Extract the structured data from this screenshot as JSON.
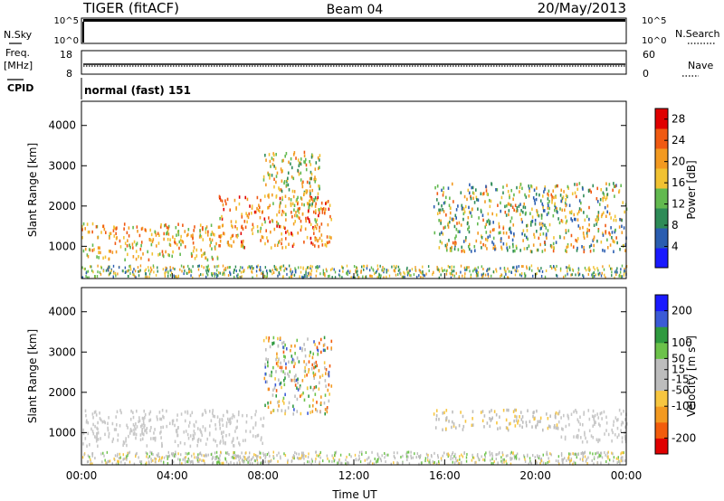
{
  "header": {
    "station": "TIGER (fitACF)",
    "beam": "Beam 04",
    "date": "20/May/2013"
  },
  "strips": {
    "nsky": {
      "label": "N.Sky",
      "right_label": "N.Search",
      "ticks": [
        "10^5",
        "10^0"
      ]
    },
    "freq": {
      "label": "Freq.",
      "unit": "[MHz]",
      "ticks_left": [
        "18",
        "8"
      ],
      "ticks_right": [
        "60",
        "0"
      ],
      "right_label": "Nave"
    },
    "cpid": {
      "label": "CPID",
      "value": "normal (fast) 151"
    }
  },
  "colors": {
    "power": [
      "#1a1aff",
      "#2a5db0",
      "#2e8b57",
      "#62b94f",
      "#f1c232",
      "#f39a21",
      "#f05a12",
      "#e00000"
    ],
    "velocity": [
      "#e00000",
      "#f25c0c",
      "#f39a21",
      "#f7c640",
      "#bdbdbd",
      "#bdbdbd",
      "#6cc24a",
      "#2f9a3f",
      "#3b5bd6",
      "#1a1aff"
    ],
    "ground": "#c8c8c8"
  },
  "chart_data": [
    {
      "type": "heatmap",
      "name": "power",
      "xlabel": "",
      "ylabel": "Slant Range [km]",
      "y_ticks": [
        1000,
        2000,
        3000,
        4000
      ],
      "ylim": [
        200,
        4600
      ],
      "xlim_hours": [
        0,
        24
      ],
      "colorbar": {
        "label": "Power [dB]",
        "ticks": [
          4,
          8,
          12,
          16,
          20,
          24,
          28
        ],
        "range": [
          0,
          30
        ]
      },
      "features": [
        {
          "t": [
            0,
            6
          ],
          "range_km": [
            700,
            1600
          ],
          "value_db": [
            12,
            26
          ]
        },
        {
          "t": [
            6,
            11
          ],
          "range_km": [
            1000,
            2300
          ],
          "value_db": [
            14,
            28
          ]
        },
        {
          "t": [
            8,
            10.5
          ],
          "range_km": [
            2000,
            3400
          ],
          "value_db": [
            8,
            24
          ]
        },
        {
          "t": [
            15.5,
            24
          ],
          "range_km": [
            900,
            2600
          ],
          "value_db": [
            4,
            24
          ]
        }
      ]
    },
    {
      "type": "heatmap",
      "name": "velocity",
      "xlabel": "Time UT",
      "ylabel": "Slant Range [km]",
      "x_ticks": [
        "00:00",
        "04:00",
        "08:00",
        "12:00",
        "16:00",
        "20:00",
        "00:00"
      ],
      "y_ticks": [
        1000,
        2000,
        3000,
        4000
      ],
      "ylim": [
        200,
        4600
      ],
      "colorbar": {
        "label": "Velocity [m s-1]",
        "ticks": [
          200,
          100,
          50,
          15,
          -15,
          -50,
          -100,
          -200
        ],
        "range": [
          -250,
          250
        ]
      },
      "features": [
        {
          "t": [
            0,
            8
          ],
          "range_km": [
            700,
            1600
          ],
          "value_ms": [
            -15,
            15
          ],
          "ground_scatter": true
        },
        {
          "t": [
            8,
            11
          ],
          "range_km": [
            1500,
            3400
          ],
          "value_ms": [
            -200,
            200
          ]
        },
        {
          "t": [
            15.5,
            21
          ],
          "range_km": [
            1100,
            1600
          ],
          "value_ms": [
            -100,
            50
          ]
        },
        {
          "t": [
            21,
            24
          ],
          "range_km": [
            800,
            1600
          ],
          "value_ms": [
            -15,
            15
          ],
          "ground_scatter": true
        }
      ]
    }
  ]
}
